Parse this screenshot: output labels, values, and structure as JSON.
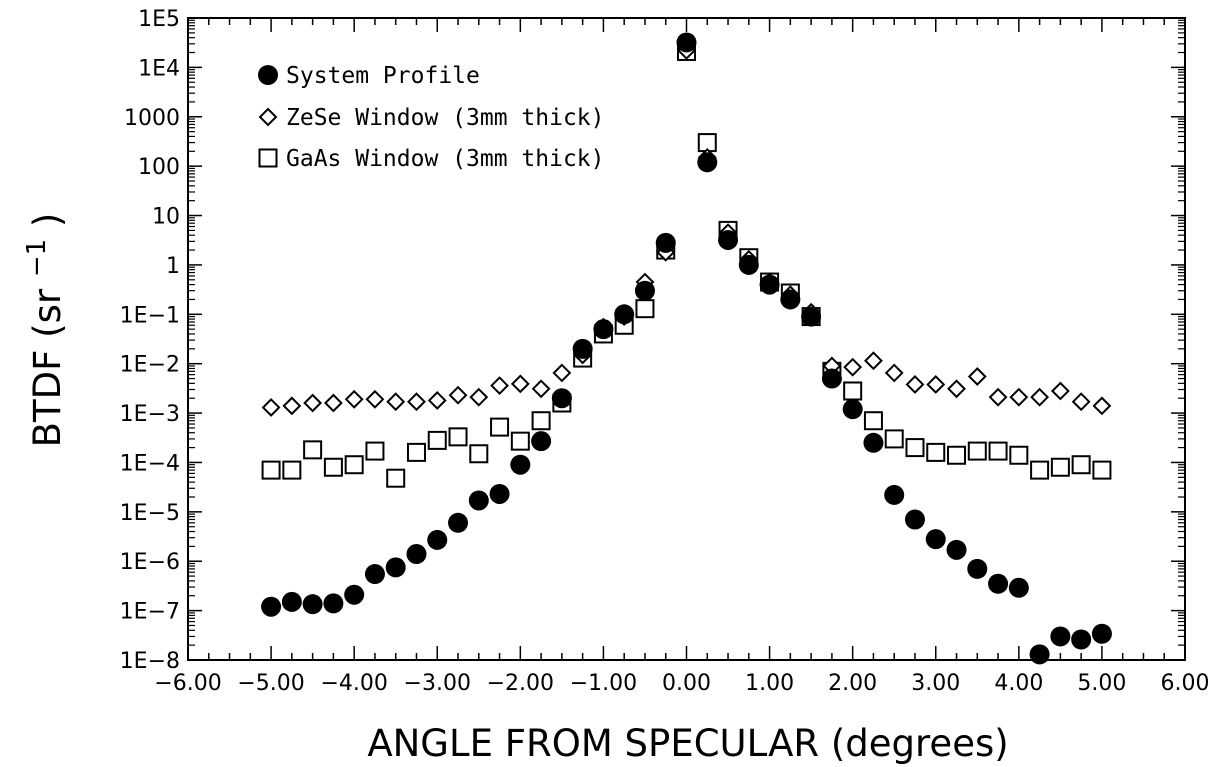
{
  "chart_data": {
    "type": "scatter",
    "title": "",
    "xlabel": "ANGLE FROM SPECULAR (degrees)",
    "ylabel_main": "BTDF (sr",
    "ylabel_sup": "−1",
    "ylabel_close": ")",
    "xlim": [
      -6,
      6
    ],
    "ylim": [
      1e-08,
      100000.0
    ],
    "yscale": "log",
    "grid": false,
    "legend_position": "top-left",
    "x_ticks": [
      {
        "v": -6,
        "label": "−6.00"
      },
      {
        "v": -5,
        "label": "−5.00"
      },
      {
        "v": -4,
        "label": "−4.00"
      },
      {
        "v": -3,
        "label": "−3.00"
      },
      {
        "v": -2,
        "label": "−2.00"
      },
      {
        "v": -1,
        "label": "−1.00"
      },
      {
        "v": 0,
        "label": "0.00"
      },
      {
        "v": 1,
        "label": "1.00"
      },
      {
        "v": 2,
        "label": "2.00"
      },
      {
        "v": 3,
        "label": "3.00"
      },
      {
        "v": 4,
        "label": "4.00"
      },
      {
        "v": 5,
        "label": "5.00"
      },
      {
        "v": 6,
        "label": "6.00"
      }
    ],
    "y_ticks": [
      {
        "v": 100000.0,
        "label": "1E5"
      },
      {
        "v": 10000.0,
        "label": "1E4"
      },
      {
        "v": 1000,
        "label": "1000"
      },
      {
        "v": 100,
        "label": "100"
      },
      {
        "v": 10,
        "label": "10"
      },
      {
        "v": 1,
        "label": "1"
      },
      {
        "v": 0.1,
        "label": "1E−1"
      },
      {
        "v": 0.01,
        "label": "1E−2"
      },
      {
        "v": 0.001,
        "label": "1E−3"
      },
      {
        "v": 0.0001,
        "label": "1E−4"
      },
      {
        "v": 1e-05,
        "label": "1E−5"
      },
      {
        "v": 1e-06,
        "label": "1E−6"
      },
      {
        "v": 1e-07,
        "label": "1E−7"
      },
      {
        "v": 1e-08,
        "label": "1E−8"
      }
    ],
    "series": [
      {
        "name": "System Profile",
        "marker": "filled-circle",
        "x": [
          -5.0,
          -4.75,
          -4.5,
          -4.25,
          -4.0,
          -3.75,
          -3.5,
          -3.25,
          -3.0,
          -2.75,
          -2.5,
          -2.25,
          -2.0,
          -1.75,
          -1.5,
          -1.25,
          -1.0,
          -0.75,
          -0.5,
          -0.25,
          0.0,
          0.25,
          0.5,
          0.75,
          1.0,
          1.25,
          1.5,
          1.75,
          2.0,
          2.25,
          2.5,
          2.75,
          3.0,
          3.25,
          3.5,
          3.75,
          4.0,
          4.25,
          4.5,
          4.75,
          5.0
        ],
        "y": [
          1.2e-07,
          1.5e-07,
          1.35e-07,
          1.4e-07,
          2.1e-07,
          5.5e-07,
          7.5e-07,
          1.4e-06,
          2.7e-06,
          6e-06,
          1.7e-05,
          2.3e-05,
          9e-05,
          0.00027,
          0.002,
          0.02,
          0.05,
          0.1,
          0.3,
          2.8,
          32000,
          120,
          3.2,
          1.0,
          0.4,
          0.2,
          0.09,
          0.005,
          0.0012,
          0.00025,
          2.2e-05,
          7e-06,
          2.8e-06,
          1.7e-06,
          7e-07,
          3.5e-07,
          2.9e-07,
          1.3e-08,
          3e-08,
          2.6e-08,
          3.4e-08
        ]
      },
      {
        "name": "ZeSe Window (3mm thick)",
        "marker": "open-diamond",
        "x": [
          -5.0,
          -4.75,
          -4.5,
          -4.25,
          -4.0,
          -3.75,
          -3.5,
          -3.25,
          -3.0,
          -2.75,
          -2.5,
          -2.25,
          -2.0,
          -1.75,
          -1.5,
          -1.25,
          -1.0,
          -0.75,
          -0.5,
          -0.25,
          0.0,
          0.25,
          0.5,
          0.75,
          1.0,
          1.25,
          1.5,
          1.75,
          2.0,
          2.25,
          2.5,
          2.75,
          3.0,
          3.25,
          3.5,
          3.75,
          4.0,
          4.25,
          4.5,
          4.75,
          5.0
        ],
        "y": [
          0.0013,
          0.0014,
          0.0016,
          0.0016,
          0.0019,
          0.0019,
          0.0017,
          0.0017,
          0.0018,
          0.0023,
          0.0021,
          0.0036,
          0.0039,
          0.0031,
          0.0065,
          0.015,
          0.055,
          0.09,
          0.45,
          1.8,
          22000,
          150,
          4.5,
          1.3,
          0.45,
          0.25,
          0.11,
          0.009,
          0.0085,
          0.0115,
          0.0065,
          0.0038,
          0.0038,
          0.0031,
          0.0055,
          0.0021,
          0.0021,
          0.0021,
          0.0028,
          0.0017,
          0.0014
        ]
      },
      {
        "name": "GaAs Window (3mm thick)",
        "marker": "open-square",
        "x": [
          -5.0,
          -4.75,
          -4.5,
          -4.25,
          -4.0,
          -3.75,
          -3.5,
          -3.25,
          -3.0,
          -2.75,
          -2.5,
          -2.25,
          -2.0,
          -1.75,
          -1.5,
          -1.25,
          -1.0,
          -0.75,
          -0.5,
          -0.25,
          0.0,
          0.25,
          0.5,
          0.75,
          1.0,
          1.25,
          1.5,
          1.75,
          2.0,
          2.25,
          2.5,
          2.75,
          3.0,
          3.25,
          3.5,
          3.75,
          4.0,
          4.25,
          4.5,
          4.75,
          5.0
        ],
        "y": [
          7e-05,
          7e-05,
          0.00018,
          8e-05,
          9e-05,
          0.00017,
          4.8e-05,
          0.00016,
          0.00028,
          0.00033,
          0.00015,
          0.00052,
          0.00027,
          0.0007,
          0.0016,
          0.013,
          0.04,
          0.06,
          0.13,
          2.0,
          21000,
          300,
          5.0,
          1.4,
          0.45,
          0.27,
          0.09,
          0.007,
          0.0028,
          0.0007,
          0.0003,
          0.0002,
          0.00016,
          0.00014,
          0.00017,
          0.00017,
          0.00014,
          7e-05,
          8e-05,
          9e-05,
          7e-05
        ]
      }
    ]
  }
}
